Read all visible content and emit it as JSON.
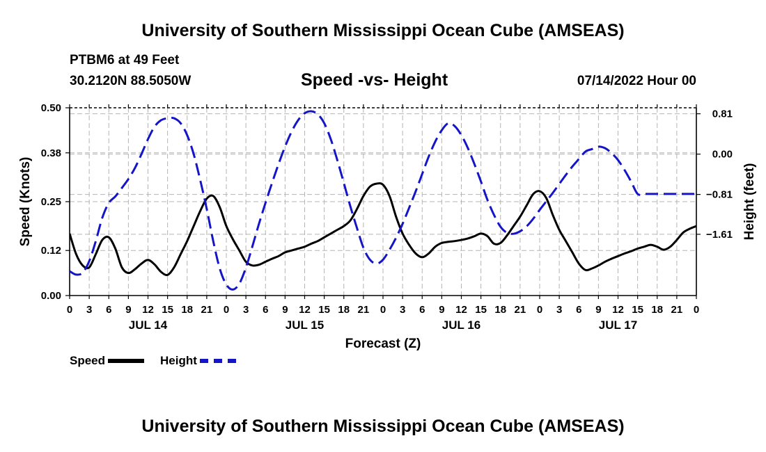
{
  "title": "University of Southern Mississippi Ocean Cube (AMSEAS)",
  "footer_title": "University of Southern Mississippi Ocean Cube (AMSEAS)",
  "station": "PTBM6 at 49 Feet",
  "coordinates": "30.2120N  88.5050W",
  "subtitle": "Speed -vs- Height",
  "datetime": "07/14/2022 Hour 00",
  "legend": {
    "speed_label": "Speed",
    "height_label": "Height"
  },
  "colors": {
    "speed": "#000000",
    "height": "#1515c8",
    "grid": "#b4b4b4"
  },
  "chart_data": {
    "type": "line",
    "title": "Speed -vs- Height",
    "xlabel": "Forecast (Z)",
    "ylabel": "Speed (Knots)",
    "y2label": "Height (feet)",
    "xlim": [
      0,
      96
    ],
    "ylim": [
      0,
      0.5
    ],
    "y2lim": [
      -2.84,
      0.93
    ],
    "y_ticks": [
      0.0,
      0.12,
      0.25,
      0.38,
      0.5
    ],
    "y_tick_labels": [
      "0.00",
      "0.12",
      "0.25",
      "0.38",
      "0.50"
    ],
    "y2_ticks": [
      0.81,
      0.0,
      -0.81,
      -1.61
    ],
    "y2_tick_labels": [
      "0.81",
      "0.00",
      "−0.81",
      "−1.61"
    ],
    "x_ticks": [
      0,
      3,
      6,
      9,
      12,
      15,
      18,
      21,
      24,
      27,
      30,
      33,
      36,
      39,
      42,
      45,
      48,
      51,
      54,
      57,
      60,
      63,
      66,
      69,
      72,
      75,
      78,
      81,
      84,
      87,
      90,
      93,
      96
    ],
    "x_tick_labels": [
      "0",
      "3",
      "6",
      "9",
      "12",
      "15",
      "18",
      "21",
      "0",
      "3",
      "6",
      "9",
      "12",
      "15",
      "18",
      "21",
      "0",
      "3",
      "6",
      "9",
      "12",
      "15",
      "18",
      "21",
      "0",
      "3",
      "6",
      "9",
      "12",
      "15",
      "18",
      "21",
      "0"
    ],
    "date_labels": [
      {
        "x": 12,
        "label": "JUL 14"
      },
      {
        "x": 36,
        "label": "JUL 15"
      },
      {
        "x": 60,
        "label": "JUL 16"
      },
      {
        "x": 84,
        "label": "JUL 17"
      }
    ],
    "legend_position": "bottom-left",
    "grid": true,
    "series": [
      {
        "name": "Speed",
        "axis": "left",
        "style": "solid",
        "x": [
          0,
          1,
          2,
          3,
          4,
          5,
          6,
          7,
          8,
          9,
          10,
          11,
          12,
          13,
          14,
          15,
          16,
          17,
          18,
          19,
          20,
          21,
          22,
          23,
          24,
          25,
          26,
          27,
          28,
          29,
          30,
          31,
          32,
          33,
          34,
          35,
          36,
          37,
          38,
          39,
          40,
          41,
          42,
          43,
          44,
          45,
          46,
          47,
          48,
          49,
          50,
          51,
          52,
          53,
          54,
          55,
          56,
          57,
          58,
          59,
          60,
          61,
          62,
          63,
          64,
          65,
          66,
          67,
          68,
          69,
          70,
          71,
          72,
          73,
          74,
          75,
          76,
          77,
          78,
          79,
          80,
          81,
          82,
          83,
          84,
          85,
          86,
          87,
          88,
          89,
          90,
          91,
          92,
          93,
          94,
          95,
          96
        ],
        "values": [
          0.165,
          0.11,
          0.08,
          0.075,
          0.11,
          0.148,
          0.155,
          0.125,
          0.075,
          0.06,
          0.07,
          0.085,
          0.095,
          0.083,
          0.063,
          0.055,
          0.075,
          0.11,
          0.145,
          0.185,
          0.225,
          0.258,
          0.265,
          0.235,
          0.185,
          0.15,
          0.12,
          0.09,
          0.08,
          0.082,
          0.09,
          0.098,
          0.105,
          0.115,
          0.12,
          0.125,
          0.13,
          0.138,
          0.145,
          0.155,
          0.165,
          0.175,
          0.185,
          0.2,
          0.23,
          0.265,
          0.29,
          0.298,
          0.295,
          0.265,
          0.21,
          0.165,
          0.135,
          0.112,
          0.102,
          0.112,
          0.13,
          0.14,
          0.143,
          0.145,
          0.148,
          0.152,
          0.158,
          0.165,
          0.158,
          0.138,
          0.14,
          0.16,
          0.185,
          0.21,
          0.24,
          0.27,
          0.278,
          0.26,
          0.215,
          0.175,
          0.145,
          0.115,
          0.085,
          0.068,
          0.072,
          0.08,
          0.09,
          0.098,
          0.105,
          0.112,
          0.118,
          0.125,
          0.13,
          0.135,
          0.13,
          0.122,
          0.13,
          0.148,
          0.168,
          0.178,
          0.185
        ]
      },
      {
        "name": "Height",
        "axis": "right",
        "style": "dashed",
        "x": [
          0,
          1,
          2,
          3,
          4,
          5,
          6,
          7,
          8,
          9,
          10,
          11,
          12,
          13,
          14,
          15,
          16,
          17,
          18,
          19,
          20,
          21,
          22,
          23,
          24,
          25,
          26,
          27,
          28,
          29,
          30,
          31,
          32,
          33,
          34,
          35,
          36,
          37,
          38,
          39,
          40,
          41,
          42,
          43,
          44,
          45,
          46,
          47,
          48,
          49,
          50,
          51,
          52,
          53,
          54,
          55,
          56,
          57,
          58,
          59,
          60,
          61,
          62,
          63,
          64,
          65,
          66,
          67,
          68,
          69,
          70,
          71,
          72,
          73,
          74,
          75,
          76,
          77,
          78,
          79,
          80,
          81,
          82,
          83,
          84,
          85,
          86,
          87,
          88,
          89,
          90,
          91,
          92,
          93,
          94,
          95,
          96
        ],
        "values": [
          -2.35,
          -2.42,
          -2.38,
          -2.15,
          -1.75,
          -1.28,
          -0.98,
          -0.85,
          -0.68,
          -0.5,
          -0.28,
          0.0,
          0.3,
          0.55,
          0.68,
          0.72,
          0.72,
          0.62,
          0.38,
          0.0,
          -0.52,
          -1.1,
          -1.75,
          -2.3,
          -2.62,
          -2.72,
          -2.6,
          -2.28,
          -1.85,
          -1.4,
          -0.98,
          -0.58,
          -0.2,
          0.15,
          0.45,
          0.68,
          0.82,
          0.86,
          0.8,
          0.62,
          0.3,
          -0.12,
          -0.58,
          -1.05,
          -1.48,
          -1.88,
          -2.12,
          -2.2,
          -2.12,
          -1.92,
          -1.68,
          -1.4,
          -1.08,
          -0.75,
          -0.4,
          -0.05,
          0.25,
          0.48,
          0.62,
          0.56,
          0.38,
          0.12,
          -0.2,
          -0.55,
          -0.92,
          -1.22,
          -1.46,
          -1.58,
          -1.6,
          -1.55,
          -1.45,
          -1.3,
          -1.12,
          -0.95,
          -0.78,
          -0.6,
          -0.42,
          -0.25,
          -0.1,
          0.05,
          0.1,
          0.15,
          0.12,
          0.02,
          -0.12,
          -0.32,
          -0.55,
          -0.8,
          -0.8,
          -0.8,
          -0.8,
          -0.8,
          -0.8,
          -0.8,
          -0.8,
          -0.8,
          -0.8
        ]
      }
    ]
  }
}
